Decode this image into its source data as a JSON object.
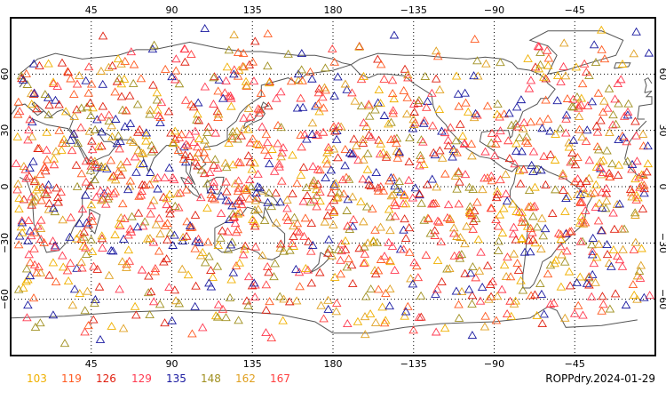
{
  "map": {
    "top_tick_labels": [
      "45",
      "90",
      "135",
      "180",
      "−135",
      "−90",
      "−45"
    ],
    "bottom_tick_labels": [
      "45",
      "90",
      "135",
      "180",
      "−135",
      "−90",
      "−45"
    ],
    "lat_tick_labels": [
      "60",
      "30",
      "0",
      "−30",
      "−60"
    ],
    "legend": [
      {
        "label": "103",
        "color": "#f0b000"
      },
      {
        "label": "119",
        "color": "#ff5a20"
      },
      {
        "label": "126",
        "color": "#e02010"
      },
      {
        "label": "129",
        "color": "#ff3a50"
      },
      {
        "label": "135",
        "color": "#1a1aa0"
      },
      {
        "label": "148",
        "color": "#a09020"
      },
      {
        "label": "162",
        "color": "#e0a020"
      },
      {
        "label": "167",
        "color": "#ff4040"
      }
    ],
    "product_label": "ROPPdry.2024-01-29",
    "frame_color": "#000000",
    "coast_color": "#555555",
    "grid_color": "#000000",
    "marker_shape": "triangle"
  }
}
